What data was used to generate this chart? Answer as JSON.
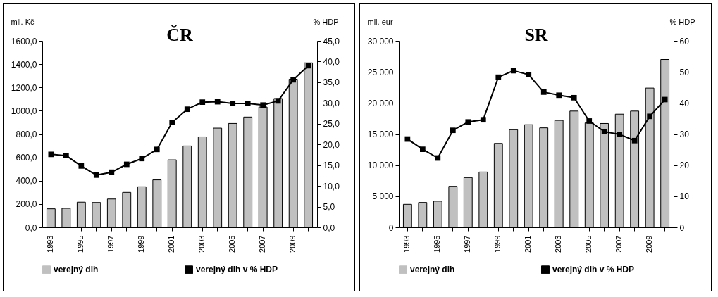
{
  "chart_data": [
    {
      "type": "bar",
      "title": "ČR",
      "ylabel": "mil. Kč",
      "y2label": "% HDP",
      "categories": [
        "1993",
        null,
        "1995",
        null,
        "1997",
        null,
        "1999",
        null,
        "2001",
        null,
        "2003",
        null,
        "2005",
        null,
        "2007",
        null,
        "2009",
        null
      ],
      "series": [
        {
          "name": "verejný dlh",
          "color": "#c0c0c0",
          "values": [
            159,
            163,
            216,
            213,
            243,
            300,
            348,
            407,
            579,
            698,
            776,
            851,
            891,
            946,
            1032,
            1105,
            1271,
            1411
          ]
        },
        {
          "name": "verejný dlh v % HDP",
          "type": "line",
          "axis": "y2",
          "color": "#000000",
          "values": [
            17.6,
            17.3,
            14.8,
            12.6,
            13.3,
            15.2,
            16.6,
            18.8,
            25.3,
            28.5,
            30.2,
            30.3,
            29.9,
            29.9,
            29.5,
            30.5,
            35.6,
            39.0
          ]
        }
      ],
      "ylim": [
        0,
        1600
      ],
      "yticks": [
        {
          "value": 0,
          "label": "0,0"
        },
        {
          "value": 200,
          "label": "200,0"
        },
        {
          "value": 400,
          "label": "400,0"
        },
        {
          "value": 600,
          "label": "600,0"
        },
        {
          "value": 800,
          "label": "800,0"
        },
        {
          "value": 1000,
          "label": "1000,0"
        },
        {
          "value": 1200,
          "label": "1200,0"
        },
        {
          "value": 1400,
          "label": "1400,0"
        },
        {
          "value": 1600,
          "label": "1600,0"
        }
      ],
      "y2lim": [
        0,
        45
      ],
      "y2ticks": [
        {
          "value": 0,
          "label": "0,0"
        },
        {
          "value": 5,
          "label": "5,0"
        },
        {
          "value": 10,
          "label": "10,0"
        },
        {
          "value": 15,
          "label": "15,0"
        },
        {
          "value": 20,
          "label": "20,0"
        },
        {
          "value": 25,
          "label": "25,0"
        },
        {
          "value": 30,
          "label": "30,0"
        },
        {
          "value": 35,
          "label": "35,0"
        },
        {
          "value": 40,
          "label": "40,0"
        },
        {
          "value": 45,
          "label": "45,0"
        }
      ],
      "legend": "bottom",
      "marker": "square"
    },
    {
      "type": "bar",
      "title": "SR",
      "ylabel": "mil. eur",
      "y2label": "% HDP",
      "categories": [
        "1993",
        null,
        "1995",
        null,
        "1997",
        null,
        "1999",
        null,
        "2001",
        null,
        "2003",
        null,
        "2005",
        null,
        "2007",
        null,
        "2009",
        null
      ],
      "series": [
        {
          "name": "verejný dlh",
          "color": "#c0c0c0",
          "values": [
            3700,
            4000,
            4200,
            6600,
            8000,
            8900,
            13500,
            15700,
            16500,
            16000,
            17200,
            18700,
            16800,
            16700,
            18200,
            18700,
            22400,
            27000
          ]
        },
        {
          "name": "verejný dlh v % HDP",
          "type": "line",
          "axis": "y2",
          "color": "#000000",
          "values": [
            28.4,
            25.1,
            22.3,
            31.2,
            33.9,
            34.6,
            48.3,
            50.4,
            49.1,
            43.5,
            42.5,
            41.7,
            34.2,
            30.8,
            29.9,
            27.9,
            35.7,
            41.1
          ]
        }
      ],
      "ylim": [
        0,
        30000
      ],
      "yticks": [
        0,
        {
          "value": 5000,
          "label": "5 000"
        },
        {
          "value": 10000,
          "label": "10 000"
        },
        {
          "value": 15000,
          "label": "15 000"
        },
        {
          "value": 20000,
          "label": "20 000"
        },
        {
          "value": 25000,
          "label": "25 000"
        },
        {
          "value": 30000,
          "label": "30 000"
        }
      ],
      "y2lim": [
        0,
        60
      ],
      "y2ticks": [
        0,
        10,
        20,
        30,
        40,
        50,
        60
      ],
      "legend": "bottom",
      "marker": "square"
    }
  ]
}
